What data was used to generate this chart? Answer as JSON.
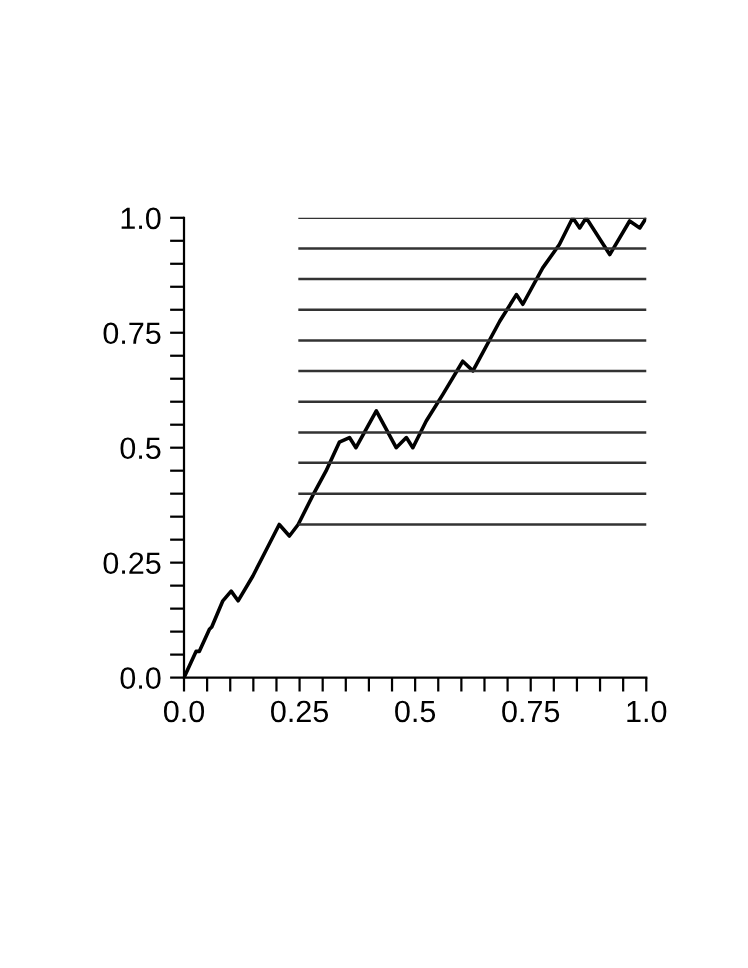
{
  "chart_data": {
    "type": "line",
    "xlim": [
      0,
      1.0
    ],
    "ylim": [
      0,
      1.0
    ],
    "xticks": [
      {
        "value": 0,
        "label": "0.0"
      },
      {
        "value": 0.05,
        "label": null
      },
      {
        "value": 0.1,
        "label": null
      },
      {
        "value": 0.15,
        "label": null
      },
      {
        "value": 0.2,
        "label": null
      },
      0.25,
      {
        "value": 0.3,
        "label": null
      },
      {
        "value": 0.35,
        "label": null
      },
      {
        "value": 0.4,
        "label": null
      },
      {
        "value": 0.45,
        "label": null
      },
      0.5,
      {
        "value": 0.55,
        "label": null
      },
      {
        "value": 0.6,
        "label": null
      },
      {
        "value": 0.65,
        "label": null
      },
      {
        "value": 0.7,
        "label": null
      },
      0.75,
      {
        "value": 0.8,
        "label": null
      },
      {
        "value": 0.85,
        "label": null
      },
      {
        "value": 0.9,
        "label": null
      },
      {
        "value": 0.95,
        "label": null
      },
      {
        "value": 1.0,
        "label": "1.0"
      }
    ],
    "yticks": [
      {
        "value": 0,
        "label": "0.0"
      },
      {
        "value": 0.05,
        "label": null
      },
      {
        "value": 0.1,
        "label": null
      },
      {
        "value": 0.15,
        "label": null
      },
      {
        "value": 0.2,
        "label": null
      },
      0.25,
      {
        "value": 0.3,
        "label": null
      },
      {
        "value": 0.35,
        "label": null
      },
      {
        "value": 0.4,
        "label": null
      },
      {
        "value": 0.45,
        "label": null
      },
      0.5,
      {
        "value": 0.55,
        "label": null
      },
      {
        "value": 0.6,
        "label": null
      },
      {
        "value": 0.65,
        "label": null
      },
      {
        "value": 0.7,
        "label": null
      },
      0.75,
      {
        "value": 0.8,
        "label": null
      },
      {
        "value": 0.85,
        "label": null
      },
      {
        "value": 0.9,
        "label": null
      },
      {
        "value": 0.95,
        "label": null
      },
      {
        "value": 1.0,
        "label": "1.0"
      }
    ],
    "grid": false,
    "legend": false,
    "marker": "none",
    "line_style": "solid",
    "series": [
      {
        "color": "#000000",
        "x": [
          0,
          0.026,
          0.033,
          0.055,
          0.06,
          0.084,
          0.102,
          0.117,
          0.149,
          0.175,
          0.206,
          0.228,
          0.247,
          0.278,
          0.307,
          0.336,
          0.358,
          0.372,
          0.416,
          0.459,
          0.481,
          0.495,
          0.524,
          0.56,
          0.603,
          0.625,
          0.683,
          0.719,
          0.733,
          0.776,
          0.812,
          0.841,
          0.856,
          0.87,
          0.921,
          0.964,
          0.986,
          1.0
        ],
        "values": [
          0,
          0.057,
          0.057,
          0.105,
          0.11,
          0.167,
          0.188,
          0.167,
          0.221,
          0.272,
          0.333,
          0.308,
          0.333,
          0.395,
          0.449,
          0.512,
          0.522,
          0.5,
          0.58,
          0.5,
          0.522,
          0.5,
          0.558,
          0.616,
          0.688,
          0.667,
          0.775,
          0.833,
          0.812,
          0.891,
          0.942,
          1.0,
          0.978,
          1.0,
          0.92,
          0.993,
          0.978,
          1.0
        ]
      },
      {
        "color": "#333333",
        "x": [
          0.25,
          1.0
        ],
        "values": [
          0.333,
          0.333
        ]
      },
      {
        "color": "#333333",
        "x": [
          0.25,
          1.0
        ],
        "values": [
          0.4,
          0.4
        ]
      },
      {
        "color": "#333333",
        "x": [
          0.25,
          1.0
        ],
        "values": [
          0.467,
          0.467
        ]
      },
      {
        "color": "#333333",
        "x": [
          0.25,
          1.0
        ],
        "values": [
          0.533,
          0.533
        ]
      },
      {
        "color": "#333333",
        "x": [
          0.25,
          1.0
        ],
        "values": [
          0.6,
          0.6
        ]
      },
      {
        "color": "#333333",
        "x": [
          0.25,
          1.0
        ],
        "values": [
          0.667,
          0.667
        ]
      },
      {
        "color": "#333333",
        "x": [
          0.25,
          1.0
        ],
        "values": [
          0.733,
          0.733
        ]
      },
      {
        "color": "#333333",
        "x": [
          0.25,
          1.0
        ],
        "values": [
          0.8,
          0.8
        ]
      },
      {
        "color": "#333333",
        "x": [
          0.25,
          1.0
        ],
        "values": [
          0.867,
          0.867
        ]
      },
      {
        "color": "#333333",
        "x": [
          0.25,
          1.0
        ],
        "values": [
          0.933,
          0.933
        ]
      },
      {
        "color": "#333333",
        "x": [
          0.25,
          1.0
        ],
        "values": [
          1.0,
          1.0
        ]
      }
    ]
  }
}
